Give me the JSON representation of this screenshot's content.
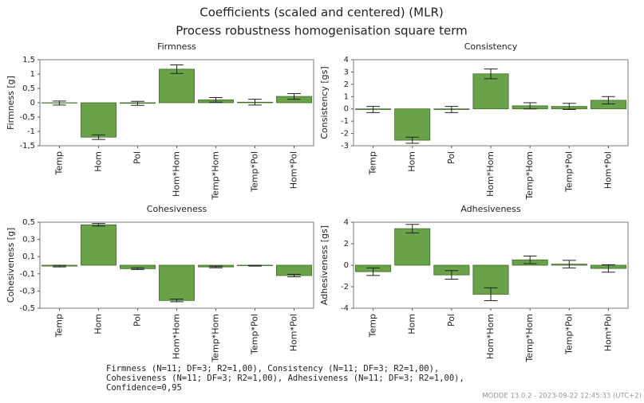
{
  "title": "Coefficients (scaled and centered) (MLR)",
  "subtitle": "Process robustness homogenisation square term",
  "footnote": [
    "Firmness (N=11; DF=3; R2=1,00), Consistency (N=11; DF=3; R2=1,00),",
    "Cohesiveness (N=11; DF=3; R2=1,00), Adhesiveness (N=11; DF=3; R2=1,00),",
    "Confidence=0,95"
  ],
  "watermark": "MODDE 13.0.2 - 2023-09-22 12:45:33 (UTC+2)",
  "chart_data": [
    {
      "type": "bar",
      "title": "Firmness",
      "y_label": "Firmness [g]",
      "color": "#6aa24a",
      "categories": [
        "Temp",
        "Hom",
        "Pol",
        "Hom*Hom",
        "Temp*Hom",
        "Temp*Pol",
        "Hom*Pol"
      ],
      "values": [
        -0.01,
        -1.2,
        -0.02,
        1.17,
        0.1,
        0.02,
        0.22
      ],
      "errors": [
        0.07,
        0.08,
        0.07,
        0.15,
        0.08,
        0.1,
        0.1
      ],
      "ylim": [
        -1.5,
        1.5
      ],
      "yticks": [
        {
          "value": -1.5,
          "label": "-1,5"
        },
        -1,
        {
          "value": -0.5,
          "label": "-0,5"
        },
        0,
        {
          "value": 0.5,
          "label": "0,5"
        },
        1,
        {
          "value": 1.5,
          "label": "1,5"
        }
      ]
    },
    {
      "type": "bar",
      "title": "Consistency",
      "y_label": "Consistency [gs]",
      "color": "#6aa24a",
      "categories": [
        "Temp",
        "Hom",
        "Pol",
        "Hom*Hom",
        "Temp*Hom",
        "Temp*Pol",
        "Hom*Pol"
      ],
      "values": [
        -0.05,
        -2.55,
        -0.05,
        2.85,
        0.25,
        0.2,
        0.7
      ],
      "errors": [
        0.25,
        0.25,
        0.25,
        0.4,
        0.25,
        0.25,
        0.3
      ],
      "ylim": [
        -3,
        4
      ],
      "yticks": [
        -3,
        -2,
        -1,
        0,
        1,
        2,
        3,
        4
      ]
    },
    {
      "type": "bar",
      "title": "Cohesiveness",
      "y_label": "Cohesiveness [g]",
      "color": "#6aa24a",
      "categories": [
        "Temp",
        "Hom",
        "Pol",
        "Hom*Hom",
        "Temp*Hom",
        "Temp*Pol",
        "Hom*Pol"
      ],
      "values": [
        -0.01,
        0.47,
        -0.04,
        -0.41,
        -0.02,
        -0.005,
        -0.12
      ],
      "errors": [
        0.01,
        0.015,
        0.01,
        0.015,
        0.01,
        0.005,
        0.015
      ],
      "ylim": [
        -0.5,
        0.5
      ],
      "yticks": [
        {
          "value": -0.5,
          "label": "-0,5"
        },
        {
          "value": -0.3,
          "label": "-0,3"
        },
        {
          "value": -0.1,
          "label": "-0,1"
        },
        {
          "value": 0.1,
          "label": "0,1"
        },
        {
          "value": 0.3,
          "label": "0,3"
        },
        {
          "value": 0.5,
          "label": "0,5"
        }
      ]
    },
    {
      "type": "bar",
      "title": "Adhesiveness",
      "y_label": "Adhesiveness [gs]",
      "color": "#6aa24a",
      "categories": [
        "Temp",
        "Hom",
        "Pol",
        "Hom*Hom",
        "Temp*Hom",
        "Temp*Pol",
        "Hom*Pol"
      ],
      "values": [
        -0.6,
        3.4,
        -0.9,
        -2.7,
        0.5,
        0.1,
        -0.3
      ],
      "errors": [
        0.35,
        0.4,
        0.4,
        0.6,
        0.35,
        0.35,
        0.35
      ],
      "ylim": [
        -4,
        4
      ],
      "yticks": [
        -4,
        -2,
        0,
        2,
        4
      ]
    }
  ]
}
